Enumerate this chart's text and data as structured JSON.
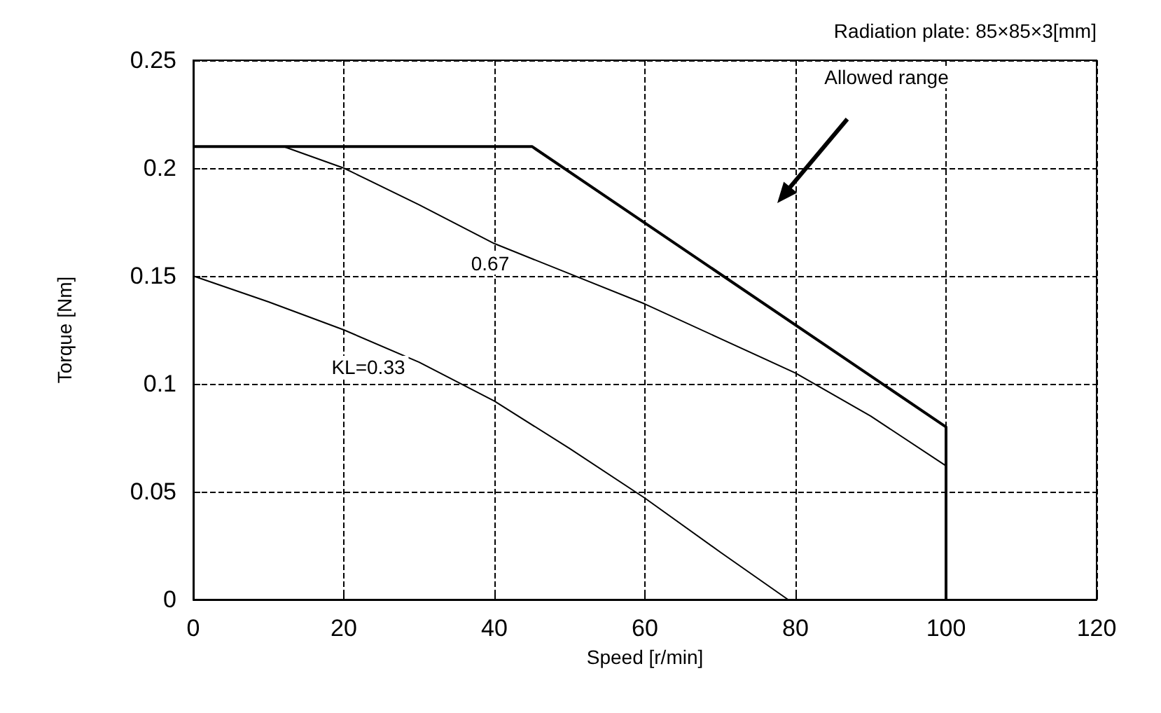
{
  "chart_data": {
    "type": "line",
    "xlabel": "Speed [r/min]",
    "ylabel": "Torque [Nm]",
    "xlim": [
      0,
      120
    ],
    "xticks": [
      0,
      20,
      40,
      60,
      80,
      100,
      120
    ],
    "ylim": [
      0,
      0.25
    ],
    "yticks": [
      0,
      0.05,
      0.1,
      0.15,
      0.2,
      0.25
    ],
    "grid": true,
    "marker": "none",
    "line_style": "solid",
    "series": [
      {
        "color": "#000000",
        "x": [
          0,
          45,
          100,
          100
        ],
        "values": [
          0.21,
          0.21,
          0.08,
          0
        ]
      },
      {
        "color": "#000000",
        "x": [
          12,
          20,
          30,
          40,
          50,
          60,
          70,
          80,
          90,
          100
        ],
        "values": [
          0.21,
          0.2,
          0.183,
          0.165,
          0.151,
          0.137,
          0.121,
          0.105,
          0.085,
          0.062
        ]
      },
      {
        "color": "#000000",
        "x": [
          0,
          10,
          20,
          30,
          40,
          50,
          60,
          70,
          79
        ],
        "values": [
          0.15,
          0.138,
          0.125,
          0.11,
          0.092,
          0.07,
          0.047,
          0.022,
          0
        ]
      }
    ],
    "annotations": [
      "Radiation plate: 85×85×3[mm]",
      "Allowed range",
      "0.67",
      "KL=0.33"
    ]
  }
}
